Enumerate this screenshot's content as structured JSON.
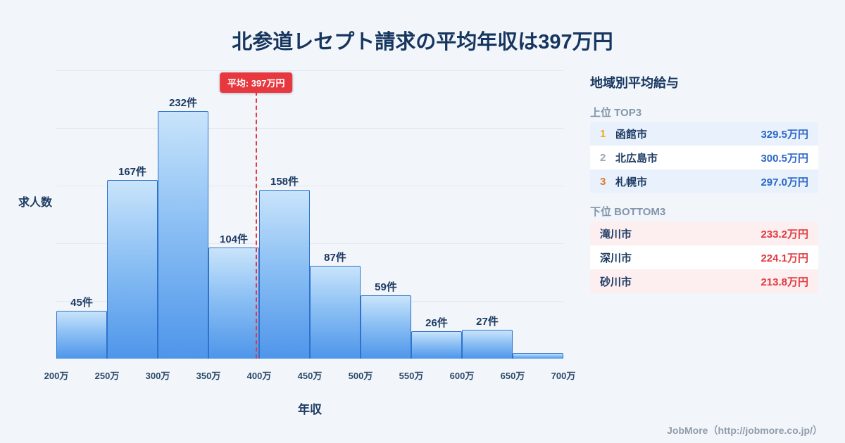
{
  "title": "北参道レセプト請求の平均年収は397万円",
  "chart_data": {
    "type": "bar",
    "title": "北参道レセプト請求の平均年収は397万円",
    "xlabel": "年収",
    "ylabel": "求人数",
    "x_ticks": [
      "200万",
      "250万",
      "300万",
      "350万",
      "400万",
      "450万",
      "500万",
      "550万",
      "600万",
      "650万",
      "700万"
    ],
    "x_range": [
      200,
      700
    ],
    "values": [
      45,
      167,
      232,
      104,
      158,
      87,
      59,
      26,
      27,
      5
    ],
    "labels": [
      "45件",
      "167件",
      "232件",
      "104件",
      "158件",
      "87件",
      "59件",
      "26件",
      "27件",
      ""
    ],
    "ylim": [
      0,
      270
    ],
    "grid": true,
    "average": {
      "value": 397,
      "label": "平均: 397万円"
    },
    "bar_color_top": "#c9e4fb",
    "bar_color_bottom": "#4e95ea",
    "average_line_color": "#e8383f"
  },
  "panel": {
    "title": "地域別平均給与",
    "top": {
      "heading": "上位 TOP3",
      "rows": [
        {
          "rank": "1",
          "city": "函館市",
          "value": "329.5万円"
        },
        {
          "rank": "2",
          "city": "北広島市",
          "value": "300.5万円"
        },
        {
          "rank": "3",
          "city": "札幌市",
          "value": "297.0万円"
        }
      ]
    },
    "bottom": {
      "heading": "下位 BOTTOM3",
      "rows": [
        {
          "city": "滝川市",
          "value": "233.2万円"
        },
        {
          "city": "深川市",
          "value": "224.1万円"
        },
        {
          "city": "砂川市",
          "value": "213.8万円"
        }
      ]
    }
  },
  "footer": "JobMore（http://jobmore.co.jp/）",
  "colors": {
    "background": "#f2f6fa",
    "title_text": "#16355f",
    "value_blue": "#2a66c8",
    "value_red": "#e03a40",
    "rank1": "#f0a71f",
    "rank2": "#9aa7b8",
    "rank3": "#e2762d"
  }
}
